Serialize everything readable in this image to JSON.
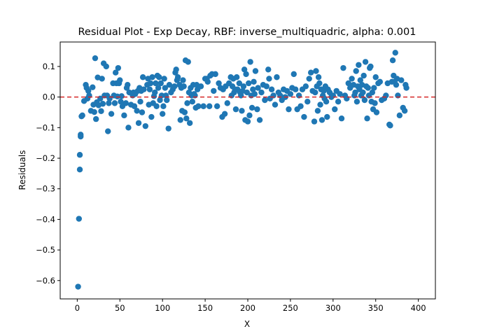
{
  "chart_data": {
    "type": "scatter",
    "title": "Residual Plot - Exp Decay, RBF: inverse_multiquadric, alpha: 0.001",
    "xlabel": "X",
    "ylabel": "Residuals",
    "xlim": [
      -20,
      420
    ],
    "ylim": [
      -0.66,
      0.18
    ],
    "xticks": [
      0,
      50,
      100,
      150,
      200,
      250,
      300,
      350,
      400
    ],
    "xtick_labels": [
      "0",
      "50",
      "100",
      "150",
      "200",
      "250",
      "300",
      "350",
      "400"
    ],
    "yticks": [
      -0.6,
      -0.5,
      -0.4,
      -0.3,
      -0.2,
      -0.1,
      0.0,
      0.1
    ],
    "ytick_labels": [
      "−0.6",
      "−0.5",
      "−0.4",
      "−0.3",
      "−0.2",
      "−0.1",
      "0.0",
      "0.1"
    ],
    "reference_line": {
      "y": 0,
      "style": "dashed",
      "color": "#d62728"
    },
    "marker_color": "#1f77b4",
    "grid": false,
    "points": [
      [
        1,
        -0.62
      ],
      [
        2,
        -0.398
      ],
      [
        3,
        -0.237
      ],
      [
        3,
        -0.189
      ],
      [
        4,
        -0.123
      ],
      [
        4,
        -0.129
      ],
      [
        5,
        -0.063
      ],
      [
        6,
        -0.06
      ],
      [
        8,
        -0.013
      ],
      [
        10,
        0.04
      ],
      [
        11,
        0.03
      ],
      [
        12,
        -0.005
      ],
      [
        13,
        0.02
      ],
      [
        14,
        0.005
      ],
      [
        16,
        -0.045
      ],
      [
        18,
        0.032
      ],
      [
        19,
        -0.025
      ],
      [
        20,
        -0.049
      ],
      [
        21,
        0.127
      ],
      [
        22,
        -0.072
      ],
      [
        23,
        -0.017
      ],
      [
        24,
        0.064
      ],
      [
        25,
        -0.027
      ],
      [
        27,
        -0.005
      ],
      [
        28,
        -0.046
      ],
      [
        29,
        0.06
      ],
      [
        30,
        -0.022
      ],
      [
        31,
        0.11
      ],
      [
        32,
        0.005
      ],
      [
        34,
        0.1
      ],
      [
        35,
        0.005
      ],
      [
        36,
        -0.112
      ],
      [
        37,
        -0.02
      ],
      [
        38,
        -0.005
      ],
      [
        40,
        -0.055
      ],
      [
        42,
        0.045
      ],
      [
        43,
        0.005
      ],
      [
        44,
        -0.02
      ],
      [
        45,
        0.08
      ],
      [
        46,
        0.045
      ],
      [
        47,
        0.002
      ],
      [
        48,
        0.095
      ],
      [
        49,
        0.045
      ],
      [
        50,
        0.055
      ],
      [
        51,
        -0.015
      ],
      [
        52,
        0.003
      ],
      [
        53,
        -0.03
      ],
      [
        55,
        -0.06
      ],
      [
        57,
        -0.02
      ],
      [
        58,
        0.03
      ],
      [
        59,
        0.04
      ],
      [
        60,
        -0.1
      ],
      [
        61,
        0.015
      ],
      [
        63,
        -0.025
      ],
      [
        65,
        0.005
      ],
      [
        66,
        0.015
      ],
      [
        67,
        -0.03
      ],
      [
        68,
        0.01
      ],
      [
        70,
        -0.045
      ],
      [
        71,
        0.02
      ],
      [
        72,
        -0.085
      ],
      [
        73,
        0.03
      ],
      [
        74,
        -0.015
      ],
      [
        75,
        0.02
      ],
      [
        76,
        -0.05
      ],
      [
        77,
        0.065
      ],
      [
        78,
        0.025
      ],
      [
        80,
        -0.095
      ],
      [
        82,
        0.04
      ],
      [
        83,
        0.06
      ],
      [
        84,
        -0.025
      ],
      [
        85,
        0.025
      ],
      [
        86,
        0.045
      ],
      [
        87,
        -0.065
      ],
      [
        88,
        0.065
      ],
      [
        89,
        -0.02
      ],
      [
        90,
        0.003
      ],
      [
        91,
        0.015
      ],
      [
        92,
        0.045
      ],
      [
        93,
        -0.03
      ],
      [
        94,
        0.07
      ],
      [
        95,
        0.03
      ],
      [
        96,
        0.065
      ],
      [
        97,
        -0.01
      ],
      [
        98,
        0.045
      ],
      [
        99,
        0.005
      ],
      [
        100,
        -0.055
      ],
      [
        101,
        -0.03
      ],
      [
        102,
        0.06
      ],
      [
        103,
        0.03
      ],
      [
        104,
        0.005
      ],
      [
        105,
        -0.01
      ],
      [
        107,
        -0.103
      ],
      [
        108,
        0.04
      ],
      [
        110,
        0.015
      ],
      [
        112,
        0.025
      ],
      [
        114,
        0.035
      ],
      [
        115,
        0.08
      ],
      [
        116,
        0.09
      ],
      [
        117,
        0.055
      ],
      [
        118,
        0.065
      ],
      [
        120,
        0.04
      ],
      [
        121,
        -0.075
      ],
      [
        122,
        0.03
      ],
      [
        123,
        -0.045
      ],
      [
        124,
        0.055
      ],
      [
        125,
        0.035
      ],
      [
        126,
        -0.05
      ],
      [
        127,
        0.12
      ],
      [
        128,
        -0.07
      ],
      [
        129,
        -0.02
      ],
      [
        130,
        0.115
      ],
      [
        131,
        0.015
      ],
      [
        132,
        -0.085
      ],
      [
        133,
        0.03
      ],
      [
        134,
        0.005
      ],
      [
        135,
        -0.015
      ],
      [
        136,
        0.04
      ],
      [
        137,
        0.01
      ],
      [
        138,
        0.005
      ],
      [
        139,
        -0.035
      ],
      [
        140,
        0.04
      ],
      [
        141,
        0.025
      ],
      [
        142,
        -0.03
      ],
      [
        145,
        0.035
      ],
      [
        148,
        -0.03
      ],
      [
        150,
        0.06
      ],
      [
        152,
        0.06
      ],
      [
        153,
        0.05
      ],
      [
        155,
        -0.03
      ],
      [
        156,
        0.07
      ],
      [
        158,
        0.075
      ],
      [
        160,
        0.02
      ],
      [
        162,
        0.075
      ],
      [
        164,
        -0.03
      ],
      [
        166,
        0.045
      ],
      [
        168,
        0.03
      ],
      [
        170,
        -0.065
      ],
      [
        171,
        0.025
      ],
      [
        173,
        -0.055
      ],
      [
        174,
        0.035
      ],
      [
        176,
        -0.02
      ],
      [
        178,
        0.045
      ],
      [
        180,
        0.065
      ],
      [
        181,
        0.005
      ],
      [
        182,
        0.035
      ],
      [
        183,
        0.06
      ],
      [
        184,
        0.015
      ],
      [
        185,
        0.025
      ],
      [
        186,
        -0.04
      ],
      [
        187,
        0.065
      ],
      [
        188,
        0.025
      ],
      [
        190,
        0.045
      ],
      [
        191,
        0.015
      ],
      [
        192,
        0.005
      ],
      [
        193,
        -0.045
      ],
      [
        194,
        0.02
      ],
      [
        195,
        0.035
      ],
      [
        196,
        0.09
      ],
      [
        197,
        -0.075
      ],
      [
        198,
        0.075
      ],
      [
        199,
        0.015
      ],
      [
        200,
        -0.08
      ],
      [
        201,
        0.045
      ],
      [
        202,
        -0.06
      ],
      [
        203,
        0.115
      ],
      [
        204,
        0.005
      ],
      [
        205,
        -0.035
      ],
      [
        206,
        0.025
      ],
      [
        207,
        0.05
      ],
      [
        208,
        0.01
      ],
      [
        209,
        0.085
      ],
      [
        211,
        -0.04
      ],
      [
        212,
        0.03
      ],
      [
        214,
        -0.075
      ],
      [
        216,
        0.015
      ],
      [
        218,
        0.04
      ],
      [
        220,
        -0.01
      ],
      [
        222,
        0.035
      ],
      [
        224,
        0.09
      ],
      [
        225,
        0.06
      ],
      [
        226,
        -0.005
      ],
      [
        228,
        0.025
      ],
      [
        230,
        0.005
      ],
      [
        232,
        -0.025
      ],
      [
        234,
        0.065
      ],
      [
        236,
        0.015
      ],
      [
        238,
        0.005
      ],
      [
        240,
        -0.01
      ],
      [
        242,
        0.025
      ],
      [
        244,
        0.0
      ],
      [
        246,
        0.02
      ],
      [
        248,
        -0.04
      ],
      [
        250,
        0.01
      ],
      [
        252,
        0.03
      ],
      [
        254,
        0.075
      ],
      [
        256,
        0.025
      ],
      [
        258,
        -0.04
      ],
      [
        260,
        0.005
      ],
      [
        262,
        -0.03
      ],
      [
        264,
        0.025
      ],
      [
        266,
        -0.065
      ],
      [
        268,
        0.035
      ],
      [
        270,
        -0.015
      ],
      [
        272,
        0.06
      ],
      [
        274,
        0.08
      ],
      [
        276,
        0.02
      ],
      [
        278,
        -0.08
      ],
      [
        279,
        0.015
      ],
      [
        280,
        0.085
      ],
      [
        281,
        0.035
      ],
      [
        282,
        -0.045
      ],
      [
        283,
        0.065
      ],
      [
        284,
        0.045
      ],
      [
        285,
        -0.025
      ],
      [
        286,
        0.025
      ],
      [
        287,
        -0.075
      ],
      [
        288,
        0.005
      ],
      [
        289,
        0.02
      ],
      [
        290,
        -0.005
      ],
      [
        291,
        0.035
      ],
      [
        292,
        -0.015
      ],
      [
        293,
        -0.065
      ],
      [
        294,
        0.025
      ],
      [
        296,
        0.015
      ],
      [
        298,
        0.0
      ],
      [
        300,
        0.005
      ],
      [
        302,
        -0.04
      ],
      [
        304,
        0.02
      ],
      [
        306,
        -0.015
      ],
      [
        308,
        0.01
      ],
      [
        310,
        -0.07
      ],
      [
        312,
        0.095
      ],
      [
        314,
        0.005
      ],
      [
        316,
        -0.005
      ],
      [
        318,
        0.045
      ],
      [
        320,
        0.03
      ],
      [
        322,
        0.06
      ],
      [
        324,
        0.04
      ],
      [
        325,
        0.005
      ],
      [
        326,
        0.015
      ],
      [
        327,
        0.085
      ],
      [
        328,
        -0.015
      ],
      [
        329,
        0.035
      ],
      [
        330,
        0.105
      ],
      [
        331,
        0.025
      ],
      [
        332,
        0.055
      ],
      [
        333,
        0.005
      ],
      [
        334,
        0.04
      ],
      [
        335,
        0.015
      ],
      [
        336,
        0.07
      ],
      [
        337,
        -0.01
      ],
      [
        338,
        0.115
      ],
      [
        339,
        0.035
      ],
      [
        340,
        -0.07
      ],
      [
        341,
        0.03
      ],
      [
        342,
        0.005
      ],
      [
        343,
        0.095
      ],
      [
        344,
        0.1
      ],
      [
        345,
        -0.015
      ],
      [
        346,
        0.015
      ],
      [
        347,
        -0.04
      ],
      [
        348,
        0.03
      ],
      [
        349,
        -0.02
      ],
      [
        350,
        0.065
      ],
      [
        351,
        -0.05
      ],
      [
        353,
        0.045
      ],
      [
        355,
        0.05
      ],
      [
        357,
        -0.01
      ],
      [
        360,
        -0.005
      ],
      [
        362,
        0.005
      ],
      [
        364,
        0.045
      ],
      [
        366,
        -0.09
      ],
      [
        367,
        -0.093
      ],
      [
        369,
        0.05
      ],
      [
        370,
        0.12
      ],
      [
        371,
        0.07
      ],
      [
        372,
        0.05
      ],
      [
        373,
        0.145
      ],
      [
        374,
        0.04
      ],
      [
        375,
        0.06
      ],
      [
        376,
        0.005
      ],
      [
        378,
        -0.06
      ],
      [
        380,
        0.055
      ],
      [
        382,
        -0.035
      ],
      [
        384,
        -0.045
      ],
      [
        385,
        0.04
      ],
      [
        386,
        0.03
      ]
    ]
  }
}
